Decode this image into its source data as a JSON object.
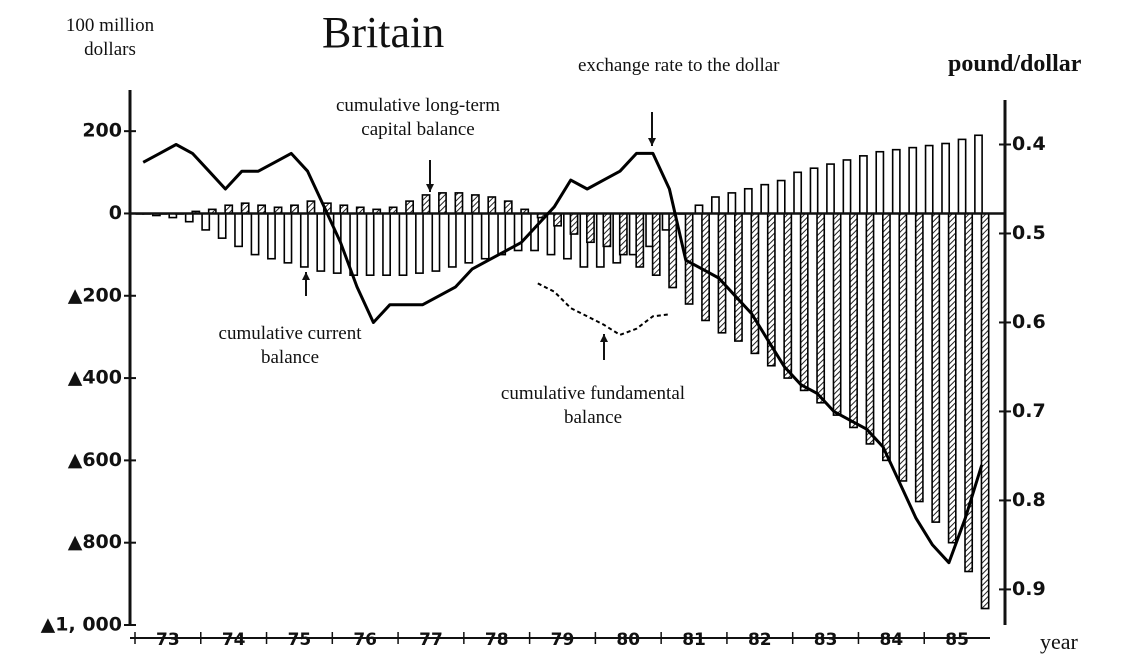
{
  "chart_data": {
    "type": "bar",
    "title": "Britain",
    "y_label": "100 million dollars",
    "y2_label": "pound/dollar",
    "x_label": "year",
    "categories": [
      null,
      "73",
      null,
      null,
      null,
      "74",
      null,
      null,
      null,
      "75",
      null,
      null,
      null,
      "76",
      null,
      null,
      null,
      "77",
      null,
      null,
      null,
      "78",
      null,
      null,
      null,
      "79",
      null,
      null,
      null,
      "80",
      null,
      null,
      null,
      "81",
      null,
      null,
      null,
      "82",
      null,
      null,
      null,
      "83",
      null,
      null,
      null,
      "84",
      null,
      null,
      null,
      "85",
      null,
      null
    ],
    "ylim": [
      -1000,
      300
    ],
    "yticks": [
      200,
      0,
      {
        "value": -200,
        "label": "▲200"
      },
      {
        "value": -400,
        "label": "▲400"
      },
      {
        "value": -600,
        "label": "▲600"
      },
      {
        "value": -800,
        "label": "▲800"
      },
      {
        "value": -1000,
        "label": "▲1, 000"
      }
    ],
    "y2lim": [
      0.35,
      0.94
    ],
    "y2_inverted": true,
    "y2ticks": [
      0.4,
      0.5,
      0.6,
      0.7,
      0.8,
      0.9
    ],
    "series": [
      {
        "name": "cumulative current balance",
        "type": "bar",
        "style": "open",
        "color": "#000000",
        "values": [
          0,
          -5,
          -10,
          -20,
          -40,
          -60,
          -80,
          -100,
          -110,
          -120,
          -130,
          -140,
          -145,
          -150,
          -150,
          -150,
          -150,
          -145,
          -140,
          -130,
          -120,
          -110,
          -100,
          -90,
          -90,
          -100,
          -110,
          -130,
          -130,
          -120,
          -100,
          -80,
          -40,
          0,
          20,
          40,
          50,
          60,
          70,
          80,
          100,
          110,
          120,
          130,
          140,
          150,
          155,
          160,
          165,
          170,
          180,
          190
        ]
      },
      {
        "name": "cumulative long-term capital balance",
        "type": "bar",
        "style": "hatched",
        "color": "#000000",
        "values": [
          0,
          0,
          0,
          5,
          10,
          20,
          25,
          20,
          15,
          20,
          30,
          25,
          20,
          15,
          10,
          15,
          30,
          45,
          50,
          50,
          45,
          40,
          30,
          10,
          -10,
          -30,
          -50,
          -70,
          -80,
          -100,
          -130,
          -150,
          -180,
          -220,
          -260,
          -290,
          -310,
          -340,
          -370,
          -400,
          -430,
          -460,
          -490,
          -520,
          -560,
          -600,
          -650,
          -700,
          -750,
          -800,
          -870,
          -960
        ]
      },
      {
        "name": "exchange rate to the dollar",
        "type": "line",
        "axis": "y2",
        "style": "solid",
        "color": "#000000",
        "values": [
          0.42,
          0.41,
          0.4,
          0.41,
          0.43,
          0.45,
          0.43,
          0.43,
          0.42,
          0.41,
          0.43,
          0.47,
          0.51,
          0.56,
          0.6,
          0.58,
          0.58,
          0.58,
          0.57,
          0.56,
          0.54,
          0.53,
          0.52,
          0.51,
          0.49,
          0.47,
          0.44,
          0.45,
          0.44,
          0.43,
          0.41,
          0.41,
          0.45,
          0.53,
          0.54,
          0.55,
          0.57,
          0.59,
          0.62,
          0.65,
          0.67,
          0.68,
          0.7,
          0.71,
          0.72,
          0.74,
          0.78,
          0.82,
          0.85,
          0.87,
          0.82,
          0.76
        ]
      },
      {
        "name": "cumulative fundamental balance",
        "type": "line",
        "style": "dashed",
        "color": "#000000",
        "values": [
          null,
          null,
          null,
          null,
          null,
          null,
          null,
          null,
          null,
          null,
          null,
          null,
          null,
          null,
          null,
          null,
          null,
          null,
          null,
          null,
          null,
          null,
          null,
          null,
          -170,
          -190,
          -230,
          -250,
          -270,
          -295,
          -280,
          -250,
          -245,
          null,
          null,
          null,
          null,
          null,
          null,
          null,
          null,
          null,
          null,
          null,
          null,
          null,
          null,
          null,
          null,
          null,
          null,
          null
        ]
      }
    ]
  }
}
